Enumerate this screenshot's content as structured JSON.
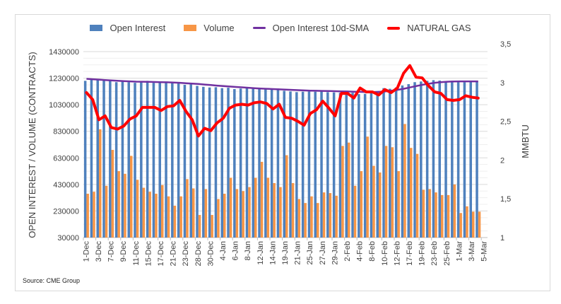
{
  "chart_data": {
    "type": "bar",
    "title": "",
    "legend": {
      "placement": "top",
      "entries": [
        {
          "name": "Open Interest",
          "kind": "bar",
          "color": "#4f81bd"
        },
        {
          "name": "Volume",
          "kind": "bar",
          "color": "#f79646"
        },
        {
          "name": "Open Interest 10d-SMA",
          "kind": "line",
          "color": "#7030a0"
        },
        {
          "name": "NATURAL GAS",
          "kind": "line",
          "color": "#ff0000"
        }
      ]
    },
    "ylabel": "OPEN INTEREST / VOLUME (CONTRACTS)",
    "y2label": "MMBTU",
    "ylim": [
      30000,
      1430000
    ],
    "y2lim": [
      1,
      3.5
    ],
    "yticks": [
      "1430000",
      "1230000",
      "1030000",
      "830000",
      "630000",
      "430000",
      "230000",
      "30000"
    ],
    "y2ticks": [
      "3,5",
      "3",
      "2,5",
      "2",
      "1,5",
      "1"
    ],
    "xtick_labels": [
      "1-Dec",
      "3-Dec",
      "7-Dec",
      "9-Dec",
      "11-Dec",
      "15-Dec",
      "17-Dec",
      "21-Dec",
      "23-Dec",
      "28-Dec",
      "30-Dec",
      "4-Jan",
      "6-Jan",
      "8-Jan",
      "12-Jan",
      "14-Jan",
      "19-Jan",
      "21-Jan",
      "25-Jan",
      "27-Jan",
      "29-Jan",
      "2-Feb",
      "4-Feb",
      "8-Feb",
      "10-Feb",
      "12-Feb",
      "17-Feb",
      "19-Feb",
      "23-Feb",
      "25-Feb",
      "1-Mar",
      "3-Mar",
      "5-Mar"
    ],
    "category_count": 65,
    "grid": true,
    "series": [
      {
        "name": "Open Interest",
        "axis": "left",
        "values": [
          1210000,
          1225000,
          1220000,
          1215000,
          1210000,
          1200000,
          1205000,
          1200000,
          1195000,
          1205000,
          1210000,
          1195000,
          1198000,
          1196000,
          1195000,
          1190000,
          1180000,
          1185000,
          1172000,
          1165000,
          1160000,
          1162000,
          1155000,
          1158000,
          1148000,
          1152000,
          1156000,
          1155000,
          1150000,
          1155000,
          1150000,
          1152000,
          1135000,
          1130000,
          1125000,
          1128000,
          1130000,
          1128000,
          1130000,
          1125000,
          1123000,
          1120000,
          1115000,
          1120000,
          1110000,
          1112000,
          1130000,
          1125000,
          1155000,
          1150000,
          1160000,
          1175000,
          1185000,
          1200000,
          1205000,
          1210000,
          1215000,
          1212000,
          1205000,
          1210000,
          1200000,
          1200000,
          1205000,
          1205000,
          null
        ]
      },
      {
        "name": "Volume",
        "axis": "left",
        "values": [
          360000,
          375000,
          845000,
          420000,
          690000,
          530000,
          510000,
          645000,
          465000,
          405000,
          375000,
          360000,
          425000,
          340000,
          270000,
          340000,
          470000,
          400000,
          200000,
          395000,
          200000,
          320000,
          360000,
          480000,
          395000,
          380000,
          410000,
          480000,
          600000,
          480000,
          440000,
          410000,
          650000,
          440000,
          320000,
          290000,
          340000,
          290000,
          370000,
          365000,
          345000,
          720000,
          745000,
          420000,
          530000,
          790000,
          570000,
          520000,
          720000,
          710000,
          530000,
          885000,
          705000,
          660000,
          390000,
          395000,
          370000,
          350000,
          350000,
          430000,
          215000,
          265000,
          225000,
          225000,
          null
        ]
      },
      {
        "name": "Open Interest 10d-SMA",
        "axis": "left",
        "values": [
          1225000,
          1222000,
          1219000,
          1216000,
          1213000,
          1210000,
          1208000,
          1206000,
          1204000,
          1203000,
          1202000,
          1201000,
          1200000,
          1199000,
          1197000,
          1195000,
          1192000,
          1189000,
          1186000,
          1182000,
          1178000,
          1174000,
          1170000,
          1167000,
          1164000,
          1161000,
          1158000,
          1155000,
          1152000,
          1150000,
          1148000,
          1146000,
          1144000,
          1142000,
          1140000,
          1138000,
          1136000,
          1135000,
          1134000,
          1133000,
          1132000,
          1131000,
          1130000,
          1128000,
          1127000,
          1125000,
          1125000,
          1127000,
          1130000,
          1135000,
          1142000,
          1150000,
          1160000,
          1170000,
          1180000,
          1188000,
          1195000,
          1200000,
          1203000,
          1205000,
          1206000,
          1206000,
          1206000,
          1206000,
          null
        ]
      },
      {
        "name": "NATURAL GAS",
        "axis": "right",
        "values": [
          2.87,
          2.78,
          2.52,
          2.57,
          2.42,
          2.4,
          2.44,
          2.53,
          2.57,
          2.68,
          2.68,
          2.68,
          2.64,
          2.69,
          2.7,
          2.77,
          2.63,
          2.52,
          2.31,
          2.41,
          2.38,
          2.48,
          2.54,
          2.67,
          2.71,
          2.72,
          2.71,
          2.74,
          2.75,
          2.73,
          2.66,
          2.72,
          2.55,
          2.54,
          2.5,
          2.45,
          2.6,
          2.65,
          2.76,
          2.67,
          2.57,
          2.86,
          2.86,
          2.8,
          2.93,
          2.88,
          2.88,
          2.84,
          2.91,
          2.87,
          2.93,
          3.12,
          3.22,
          3.07,
          3.06,
          2.96,
          2.88,
          2.86,
          2.78,
          2.77,
          2.78,
          2.83,
          2.81,
          2.8,
          null
        ]
      }
    ]
  },
  "source": "Source: CME Group"
}
